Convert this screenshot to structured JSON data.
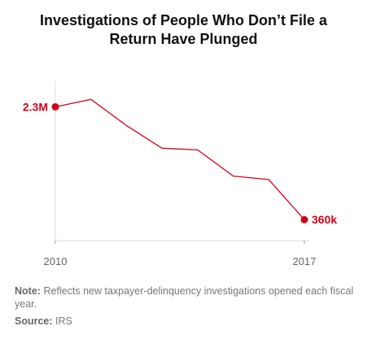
{
  "title_lines": [
    "Investigations of People Who Don’t File a",
    "Return Have Plunged"
  ],
  "chart_data": {
    "type": "line",
    "title": "Investigations of People Who Don’t File a Return Have Plunged",
    "x": [
      2010,
      2011,
      2012,
      2013,
      2014,
      2015,
      2016,
      2017
    ],
    "series": [
      {
        "values": [
          2300000,
          2430000,
          1980000,
          1590000,
          1560000,
          1110000,
          1050000,
          360000
        ],
        "color": "#d0021b"
      }
    ],
    "x_tick_labels": [
      "2010",
      "2017"
    ],
    "annotations": [
      {
        "x": 2010,
        "label": "2.3M"
      },
      {
        "x": 2017,
        "label": "360k"
      }
    ],
    "xlim": [
      2010,
      2017
    ],
    "ylim": [
      0,
      2600000
    ],
    "grid": false,
    "axis_color": "#dddddd"
  },
  "note": {
    "label": "Note:",
    "text": "Reflects new taxpayer-delinquency investigations opened each fiscal year."
  },
  "source": {
    "label": "Source:",
    "text": "IRS"
  }
}
